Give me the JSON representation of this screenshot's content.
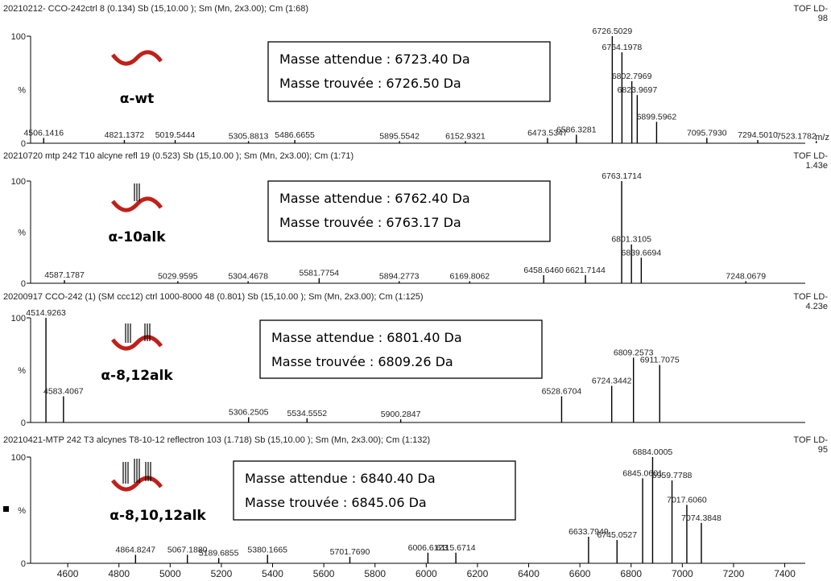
{
  "chart_data": [
    {
      "type": "spectrum",
      "header": "20210212- CCO-242ctrl  8 (0.134) Sb (15,10.00 ); Sm (Mn, 2x3.00); Cm (1:68)",
      "instrument": "TOF LD-",
      "scale": "98",
      "label": "α-wt",
      "xlabel": "m/z",
      "box": [
        "Masse attendue :  6723.40 Da",
        "Masse trouvée : 6726.50 Da"
      ],
      "x": [
        4506.1416,
        4821.1372,
        5019.5444,
        5305.8813,
        5486.6655,
        5895.5542,
        6152.9321,
        6473.5347,
        6586.3281,
        6726.5029,
        6764.1978,
        6802.7969,
        6823.9697,
        6899.5962,
        7095.793,
        7294.501,
        7523.1782
      ],
      "x_labels": [
        "4506.1416",
        "4821.1372",
        "5019.5444",
        "5305.8813",
        "5486.6655",
        "5895.5542",
        "6152.9321",
        "6473.5347",
        "6586.3281",
        "6726.5029",
        "6764.1978",
        "6802.7969",
        "6823.9697",
        "6899.5962",
        "7095.7930",
        "7294.5010",
        "7523.1782"
      ],
      "values": [
        5,
        3,
        3,
        2,
        3,
        2,
        2,
        5,
        8,
        100,
        85,
        58,
        45,
        20,
        5,
        3,
        2
      ],
      "color": "#000000",
      "xlim": [
        4455,
        7480
      ],
      "ylim": [
        0,
        100
      ],
      "yticks": [
        0,
        100
      ],
      "ylabel": "%"
    },
    {
      "type": "spectrum",
      "header": "20210720 mtp 242 T10 alcyne refl  19 (0.523) Sb (15,10.00 ); Sm (Mn, 2x3.00); Cm (1:71)",
      "instrument": "TOF LD-",
      "scale": "1.43e",
      "label": "α-10alk",
      "box": [
        "Masse attendue :  6762.40 Da",
        "Masse trouvée : 6763.17 Da"
      ],
      "x": [
        4587.1787,
        5029.9595,
        5304.4678,
        5581.7754,
        5894.2773,
        6169.8062,
        6458.646,
        6621.7144,
        6763.1714,
        6801.3105,
        6839.6694,
        7248.0679
      ],
      "x_labels": [
        "4587.1787",
        "5029.9595",
        "5304.4678",
        "5581.7754",
        "5894.2773",
        "6169.8062",
        "6458.6460",
        "6621.7144",
        "6763.1714",
        "6801.3105",
        "6839.6694",
        "7248.0679"
      ],
      "values": [
        3,
        2,
        2,
        5,
        2,
        2,
        8,
        8,
        100,
        38,
        25,
        2
      ],
      "color": "#000000",
      "xlim": [
        4455,
        7480
      ],
      "ylim": [
        0,
        100
      ],
      "yticks": [
        0,
        100
      ],
      "ylabel": "%"
    },
    {
      "type": "spectrum",
      "header": "20200917 CCO-242 (1) (SM ccc12) ctrl 1000-8000  48 (0.801) Sb (15,10.00 ); Sm (Mn, 2x3.00); Cm (1:125)",
      "instrument": "TOF LD-",
      "scale": "4.23e",
      "label": "α-8,12alk",
      "box": [
        "Masse attendue :  6801.40 Da",
        "Masse trouvée : 6809.26 Da"
      ],
      "x": [
        4514.9263,
        4583.4067,
        5306.2505,
        5534.5552,
        5900.2847,
        6528.6704,
        6724.3442,
        6809.2573,
        6911.7075
      ],
      "x_labels": [
        "4514.9263",
        "4583.4067",
        "5306.2505",
        "5534.5552",
        "5900.2847",
        "6528.6704",
        "6724.3442",
        "6809.2573",
        "6911.7075"
      ],
      "values": [
        100,
        25,
        5,
        4,
        3,
        25,
        35,
        62,
        55
      ],
      "color": "#000000",
      "xlim": [
        4455,
        7480
      ],
      "ylim": [
        0,
        100
      ],
      "yticks": [
        0,
        100
      ],
      "ylabel": "%"
    },
    {
      "type": "spectrum",
      "header": "20210421-MTP 242  T3 alcynes T8-10-12 reflectron  103 (1.718) Sb (15,10.00 ); Sm (Mn, 2x3.00); Cm (1:132)",
      "instrument": "TOF LD-",
      "scale": "95",
      "label": "α-8,10,12alk",
      "box": [
        "Masse attendue : 6840.40 Da",
        "Masse trouvée : 6845.06 Da"
      ],
      "x": [
        4864.8247,
        5067.188,
        5189.6855,
        5380.1665,
        5701.769,
        6006.6123,
        6115.6714,
        6633.7949,
        6745.0527,
        6845.0601,
        6884.0005,
        6959.7788,
        7017.606,
        7074.3848
      ],
      "x_labels": [
        "4864.8247",
        "5067.1880",
        "5189.6855",
        "5380.1665",
        "5701.7690",
        "6006.6123",
        "6115.6714",
        "6633.7949",
        "6745.0527",
        "6845.0601",
        "6884.0005",
        "6959.7788",
        "7017.6060",
        "7074.3848"
      ],
      "values": [
        8,
        8,
        5,
        8,
        6,
        10,
        10,
        25,
        22,
        80,
        100,
        78,
        55,
        38
      ],
      "color": "#000000",
      "xlim": [
        4455,
        7480
      ],
      "ylim": [
        0,
        100
      ],
      "yticks": [
        0,
        100
      ],
      "ylabel": "%",
      "xticks": [
        4600,
        4800,
        5000,
        5200,
        5400,
        5600,
        5800,
        6000,
        6200,
        6400,
        6600,
        6800,
        7000,
        7200,
        7400
      ]
    }
  ]
}
